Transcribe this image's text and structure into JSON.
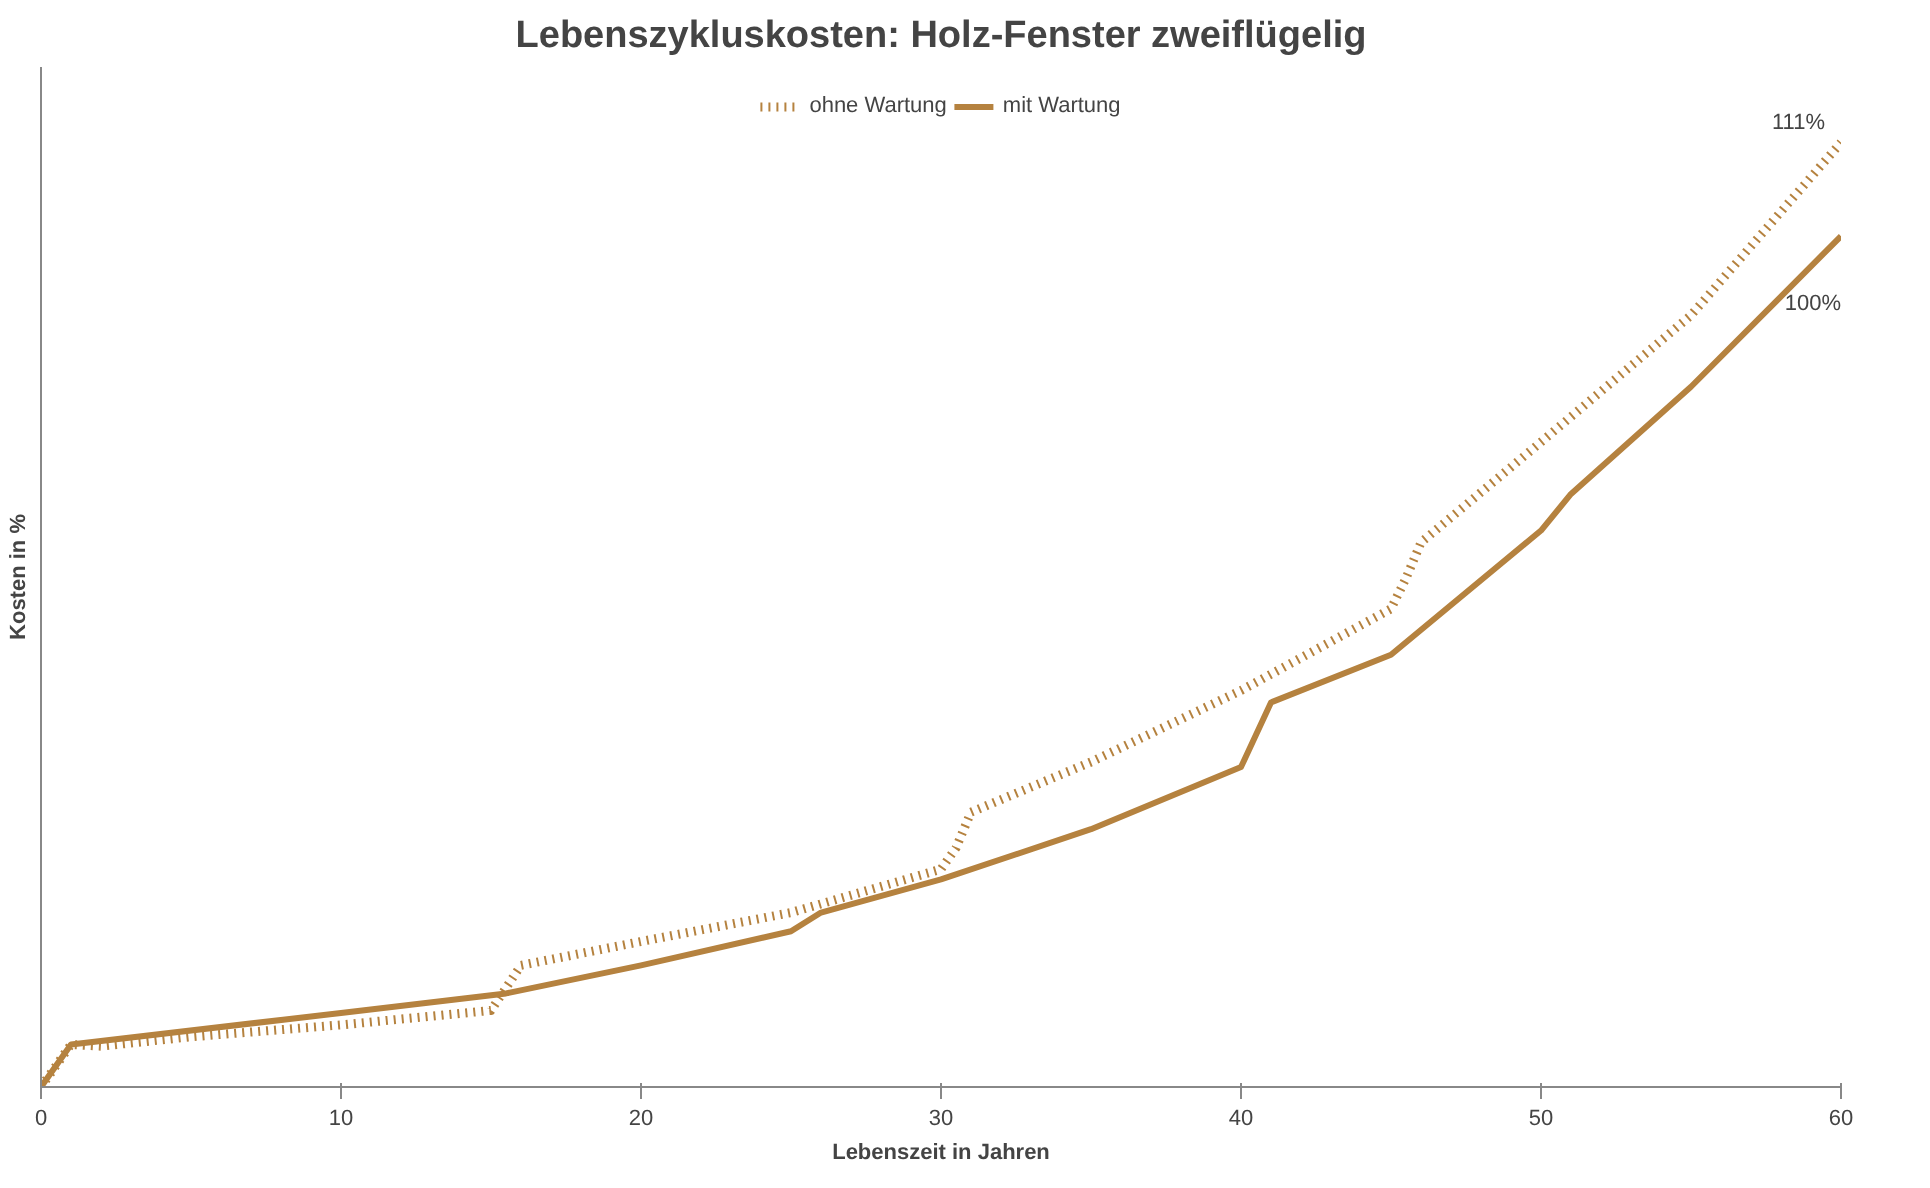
{
  "chart_data": {
    "type": "line",
    "title": "Lebenszykluskosten: Holz-Fenster zweiflügelig",
    "xlabel": "Lebenszeit in Jahren",
    "ylabel": "Kosten in %",
    "xlim": [
      0,
      60
    ],
    "xticks": [
      0,
      10,
      20,
      30,
      40,
      50,
      60
    ],
    "grid": false,
    "legend": "top",
    "series": [
      {
        "name": "ohne Wartung",
        "color": "#b5823f",
        "line_style": "dotted",
        "x": [
          0,
          1,
          2,
          5,
          10,
          15,
          16,
          20,
          25,
          30,
          30.5,
          31,
          35,
          40,
          45,
          45.5,
          46,
          50,
          55,
          60
        ],
        "values": [
          0,
          5,
          4.8,
          5.9,
          7.3,
          9,
          14.3,
          17.1,
          20.5,
          25.6,
          28.1,
          32.3,
          38.2,
          46.6,
          56.2,
          59.8,
          64,
          75.8,
          90.7,
          111
        ],
        "value_labels": [
          null,
          null,
          null,
          null,
          null,
          null,
          null,
          null,
          null,
          null,
          null,
          null,
          null,
          null,
          null,
          null,
          null,
          null,
          null,
          "111%"
        ]
      },
      {
        "name": "mit Wartung",
        "color": "#b5823f",
        "line_style": "solid",
        "x": [
          0,
          1,
          10,
          15.5,
          20,
          25,
          26,
          30,
          35,
          40,
          41,
          45,
          50,
          51,
          55,
          60
        ],
        "values": [
          0,
          5,
          8.7,
          11,
          14.3,
          18.3,
          20.5,
          24.4,
          30.3,
          37.6,
          45.2,
          50.8,
          65.4,
          69.7,
          82.3,
          100
        ],
        "value_labels": [
          null,
          null,
          null,
          null,
          null,
          null,
          null,
          null,
          null,
          null,
          null,
          null,
          null,
          null,
          null,
          "100%"
        ]
      }
    ]
  }
}
